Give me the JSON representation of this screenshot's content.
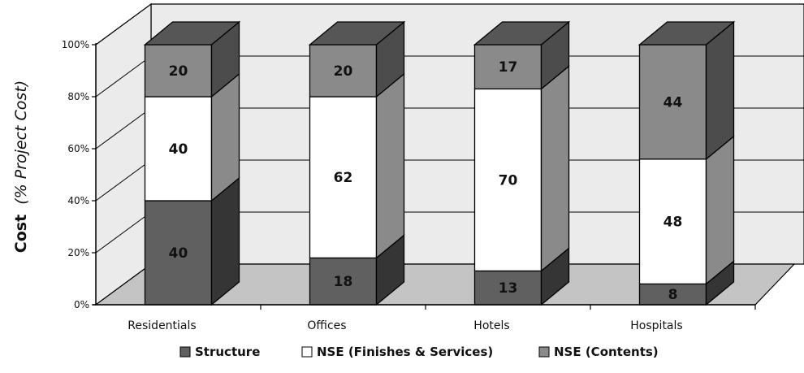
{
  "chart_data": {
    "type": "bar",
    "stacked": true,
    "three_d": true,
    "categories": [
      "Residentials",
      "Offices",
      "Hotels",
      "Hospitals"
    ],
    "series": [
      {
        "name": "Structure",
        "values": [
          40,
          18,
          13,
          8
        ]
      },
      {
        "name": "NSE (Finishes & Services)",
        "values": [
          40,
          62,
          70,
          48
        ]
      },
      {
        "name": "NSE (Contents)",
        "values": [
          20,
          20,
          17,
          44
        ]
      }
    ],
    "ylabel_bold": "Cost",
    "ylabel_italic": "(% Project Cost)",
    "ylim": [
      0,
      100
    ],
    "yticks": [
      "0%",
      "20%",
      "40%",
      "60%",
      "80%",
      "100%"
    ],
    "grid": true,
    "legend_position": "bottom",
    "colors": {
      "structure": "#606060",
      "finishes": "#ffffff",
      "contents": "#8a8a8a",
      "wall": "#ebebeb",
      "floor": "#c4c4c4"
    }
  }
}
